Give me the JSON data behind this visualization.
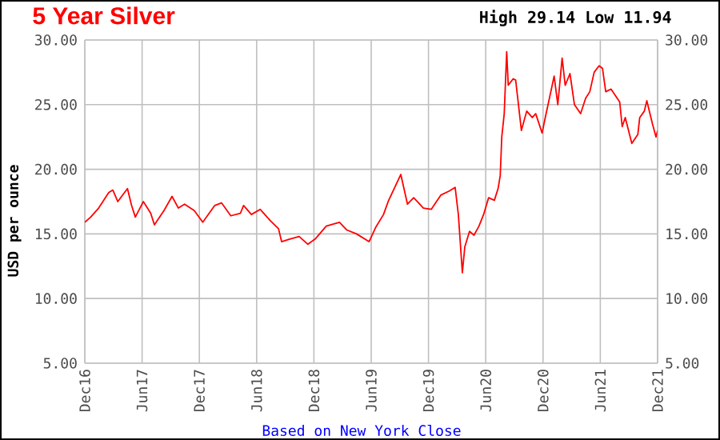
{
  "chart_data": {
    "type": "line",
    "title": "5 Year Silver",
    "subtitle": "High 29.14 Low 11.94",
    "ylabel": "USD per ounce",
    "annotations": [
      "Based on New York Close"
    ],
    "x": [
      "2016-12-01",
      "2016-12-20",
      "2017-01-15",
      "2017-02-15",
      "2017-02-27",
      "2017-03-15",
      "2017-04-15",
      "2017-04-28",
      "2017-05-10",
      "2017-06-05",
      "2017-06-28",
      "2017-07-10",
      "2017-08-10",
      "2017-09-05",
      "2017-09-25",
      "2017-10-15",
      "2017-11-15",
      "2017-12-12",
      "2018-01-20",
      "2018-02-10",
      "2018-03-10",
      "2018-04-10",
      "2018-04-20",
      "2018-05-15",
      "2018-06-12",
      "2018-07-15",
      "2018-08-10",
      "2018-08-20",
      "2018-09-15",
      "2018-10-15",
      "2018-11-12",
      "2018-12-05",
      "2019-01-10",
      "2019-02-20",
      "2019-03-15",
      "2019-04-15",
      "2019-05-25",
      "2019-06-15",
      "2019-07-10",
      "2019-07-25",
      "2019-09-04",
      "2019-09-25",
      "2019-10-15",
      "2019-11-15",
      "2019-12-10",
      "2020-01-10",
      "2020-02-05",
      "2020-02-24",
      "2020-03-05",
      "2020-03-18",
      "2020-03-26",
      "2020-04-10",
      "2020-04-24",
      "2020-05-10",
      "2020-05-25",
      "2020-06-10",
      "2020-06-28",
      "2020-07-10",
      "2020-07-17",
      "2020-07-22",
      "2020-07-30",
      "2020-08-07",
      "2020-08-12",
      "2020-08-28",
      "2020-09-05",
      "2020-09-23",
      "2020-10-10",
      "2020-10-28",
      "2020-11-08",
      "2020-11-28",
      "2020-12-10",
      "2020-12-29",
      "2021-01-06",
      "2021-01-18",
      "2021-02-01",
      "2021-02-10",
      "2021-02-24",
      "2021-03-10",
      "2021-03-30",
      "2021-04-15",
      "2021-04-28",
      "2021-05-12",
      "2021-05-28",
      "2021-06-08",
      "2021-06-18",
      "2021-07-05",
      "2021-08-02",
      "2021-08-10",
      "2021-08-20",
      "2021-09-10",
      "2021-09-29",
      "2021-10-05",
      "2021-10-20",
      "2021-10-28",
      "2021-11-15",
      "2021-11-26",
      "2021-12-01"
    ],
    "series": [
      {
        "color": "#ff0000",
        "values": [
          15.9,
          16.3,
          17.0,
          18.2,
          18.4,
          17.5,
          18.5,
          17.2,
          16.3,
          17.5,
          16.6,
          15.7,
          16.8,
          17.9,
          17.0,
          17.3,
          16.8,
          15.9,
          17.2,
          17.4,
          16.4,
          16.6,
          17.2,
          16.5,
          16.9,
          16.0,
          15.4,
          14.4,
          14.6,
          14.8,
          14.2,
          14.6,
          15.6,
          15.9,
          15.3,
          15.0,
          14.4,
          15.5,
          16.5,
          17.5,
          19.6,
          17.3,
          17.8,
          17.0,
          16.9,
          18.0,
          18.3,
          18.6,
          16.5,
          12.0,
          14.0,
          15.2,
          14.9,
          15.6,
          16.5,
          17.8,
          17.6,
          18.5,
          19.5,
          22.5,
          24.3,
          29.1,
          26.5,
          27.0,
          26.9,
          23.0,
          24.5,
          24.0,
          24.3,
          22.8,
          24.2,
          26.3,
          27.2,
          25.0,
          28.6,
          26.5,
          27.4,
          25.0,
          24.3,
          25.5,
          26.0,
          27.5,
          28.0,
          27.8,
          26.0,
          26.2,
          25.2,
          23.3,
          24.0,
          22.0,
          22.7,
          24.0,
          24.5,
          25.3,
          23.5,
          22.5,
          23.0
        ]
      }
    ],
    "xlim": [
      "2016-12",
      "2021-12"
    ],
    "xticks": [
      {
        "value": "2016-12",
        "label": "Dec16"
      },
      {
        "value": "2017-06",
        "label": "Jun17"
      },
      {
        "value": "2017-12",
        "label": "Dec17"
      },
      {
        "value": "2018-06",
        "label": "Jun18"
      },
      {
        "value": "2018-12",
        "label": "Dec18"
      },
      {
        "value": "2019-06",
        "label": "Jun19"
      },
      {
        "value": "2019-12",
        "label": "Dec19"
      },
      {
        "value": "2020-06",
        "label": "Jun20"
      },
      {
        "value": "2020-12",
        "label": "Dec20"
      },
      {
        "value": "2021-06",
        "label": "Jun21"
      },
      {
        "value": "2021-12",
        "label": "Dec21"
      }
    ],
    "ylim": [
      5,
      30
    ],
    "yticks": [
      {
        "value": 5,
        "label": "5.00"
      },
      {
        "value": 10,
        "label": "10.00"
      },
      {
        "value": 15,
        "label": "15.00"
      },
      {
        "value": 20,
        "label": "20.00"
      },
      {
        "value": 25,
        "label": "25.00"
      },
      {
        "value": 30,
        "label": "30.00"
      }
    ],
    "y2lim": [
      5,
      30
    ],
    "y2ticks": [
      {
        "value": 5,
        "label": "5.00"
      },
      {
        "value": 10,
        "label": "10.00"
      },
      {
        "value": 15,
        "label": "15.00"
      },
      {
        "value": 20,
        "label": "20.00"
      },
      {
        "value": 25,
        "label": "25.00"
      },
      {
        "value": 30,
        "label": "30.00"
      }
    ],
    "grid": true,
    "marker": "none",
    "line_style": "solid"
  }
}
